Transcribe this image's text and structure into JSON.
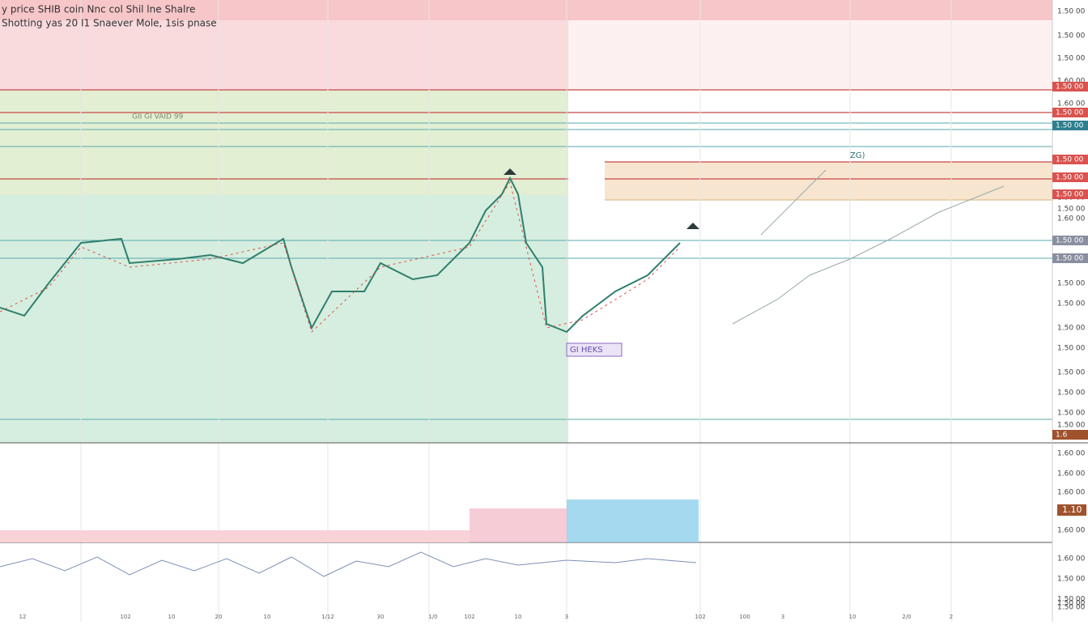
{
  "header": {
    "title": "y price SHIB coin Nnc col Shil lne Shalre",
    "subtitle": "Shotting yas 20 I1 Snaever Mole, 1sis pnase"
  },
  "chart_labels": {
    "box_label": "GI HEKS",
    "target_label": "ZG)",
    "zone_label": "GII GI VAID 99"
  },
  "price_axis": [
    "1.50 00",
    "1.50 00",
    "1.50 00",
    "1.60 00",
    "1.60 00",
    "1.50 00",
    "1.50 00",
    "1.60 00",
    "1.50 00",
    "1.50 00",
    "1.50 00",
    "1.50 00",
    "1.50 00",
    "1.50 00",
    "1.50 00",
    "1.50 00",
    "1.50 00"
  ],
  "price_tags": [
    {
      "text": "1.50 00",
      "kind": "red"
    },
    {
      "text": "1.50 00",
      "kind": "red"
    },
    {
      "text": "1.50 00",
      "kind": "teal"
    },
    {
      "text": "1.50 00",
      "kind": "red"
    },
    {
      "text": "1.50 00",
      "kind": "red"
    },
    {
      "text": "1.50 00",
      "kind": "red"
    },
    {
      "text": "1.50 00",
      "kind": "gray"
    },
    {
      "text": "1.50 00",
      "kind": "gray"
    },
    {
      "text": "1.6",
      "kind": "brown"
    }
  ],
  "lower_axis": [
    "1.60 00",
    "1.60 00",
    "1.60 00",
    "1.60 00",
    "1.60 00",
    "1.50 00",
    "1.50 00",
    "1.50 00",
    "1.50 00"
  ],
  "lower_tag": "1.10",
  "time_axis": [
    "12",
    "102",
    "10",
    "20",
    "10",
    "1/12",
    "30",
    "1/0",
    "102",
    "10",
    "3",
    "102",
    "100",
    "3",
    "10",
    "2/0",
    "2"
  ]
}
